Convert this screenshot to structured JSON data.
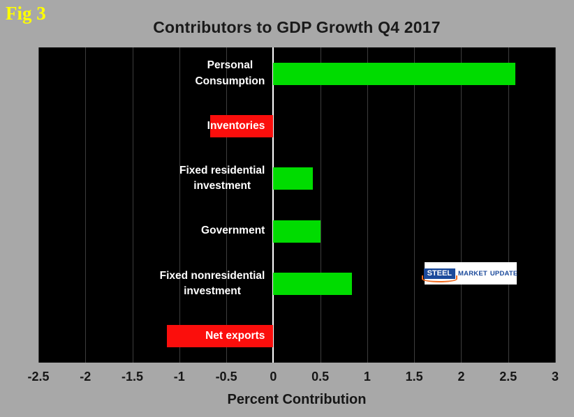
{
  "figure": {
    "label": "Fig 3"
  },
  "chart_data": {
    "type": "bar",
    "orientation": "horizontal",
    "title": "Contributors to GDP Growth Q4 2017",
    "xlabel": "Percent Contribution",
    "categories": [
      "Personal\nConsumption",
      "Inventories",
      "Fixed residential\ninvestment",
      "Government",
      "Fixed nonresidential\ninvestment",
      "Net exports"
    ],
    "values": [
      2.58,
      -0.67,
      0.42,
      0.5,
      0.84,
      -1.13
    ],
    "bar_colors": [
      "#00dc00",
      "#fb0e0c",
      "#00dc00",
      "#00dc00",
      "#00dc00",
      "#fb0e0c"
    ],
    "xlim": [
      -2.5,
      3
    ],
    "xticks": [
      -2.5,
      -2,
      -1.5,
      -1,
      -0.5,
      0,
      0.5,
      1,
      1.5,
      2,
      2.5,
      3
    ],
    "xtick_labels": [
      "-2.5",
      "-2",
      "-1.5",
      "-1",
      "-0.5",
      "0",
      "0.5",
      "1",
      "1.5",
      "2",
      "2.5",
      "3"
    ],
    "plot_bg": "#000000",
    "page_bg": "#a8a8a8",
    "grid_on": true,
    "grid_color": "#3d3d3d",
    "zero_line_color": "#ffffff",
    "legend": "none"
  },
  "logo": {
    "steel": "STEEL",
    "market": "MARKET",
    "update": "UPDATE"
  }
}
